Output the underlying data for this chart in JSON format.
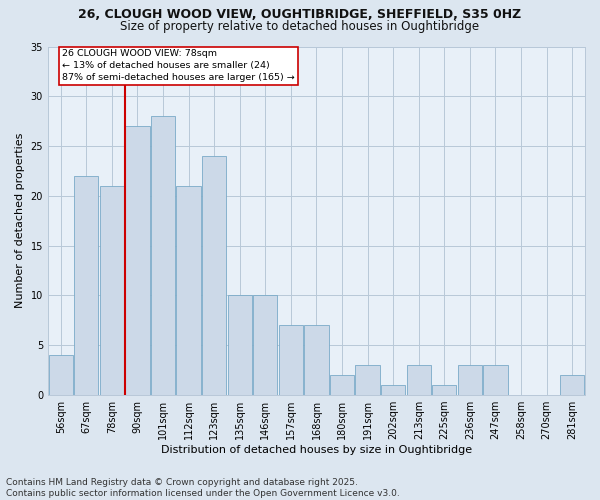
{
  "title": "26, CLOUGH WOOD VIEW, OUGHTIBRIDGE, SHEFFIELD, S35 0HZ",
  "subtitle": "Size of property relative to detached houses in Oughtibridge",
  "xlabel": "Distribution of detached houses by size in Oughtibridge",
  "ylabel": "Number of detached properties",
  "bins": [
    "56sqm",
    "67sqm",
    "78sqm",
    "90sqm",
    "101sqm",
    "112sqm",
    "123sqm",
    "135sqm",
    "146sqm",
    "157sqm",
    "168sqm",
    "180sqm",
    "191sqm",
    "202sqm",
    "213sqm",
    "225sqm",
    "236sqm",
    "247sqm",
    "258sqm",
    "270sqm",
    "281sqm"
  ],
  "values": [
    4,
    22,
    21,
    27,
    28,
    21,
    24,
    10,
    10,
    7,
    7,
    2,
    3,
    1,
    3,
    1,
    3,
    3,
    0,
    0,
    2
  ],
  "bar_color": "#ccd9e8",
  "bar_edge_color": "#7aaac8",
  "vline_index": 2,
  "vline_color": "#cc0000",
  "annotation_text": "26 CLOUGH WOOD VIEW: 78sqm\n← 13% of detached houses are smaller (24)\n87% of semi-detached houses are larger (165) →",
  "annotation_box_color": "#ffffff",
  "annotation_box_edge": "#cc0000",
  "ylim": [
    0,
    35
  ],
  "yticks": [
    0,
    5,
    10,
    15,
    20,
    25,
    30,
    35
  ],
  "footer": "Contains HM Land Registry data © Crown copyright and database right 2025.\nContains public sector information licensed under the Open Government Licence v3.0.",
  "bg_color": "#dce6f0",
  "plot_bg_color": "#e8f0f8",
  "grid_color": "#b8c8d8",
  "title_fontsize": 9,
  "subtitle_fontsize": 8.5,
  "axis_label_fontsize": 8,
  "tick_fontsize": 7,
  "footer_fontsize": 6.5
}
